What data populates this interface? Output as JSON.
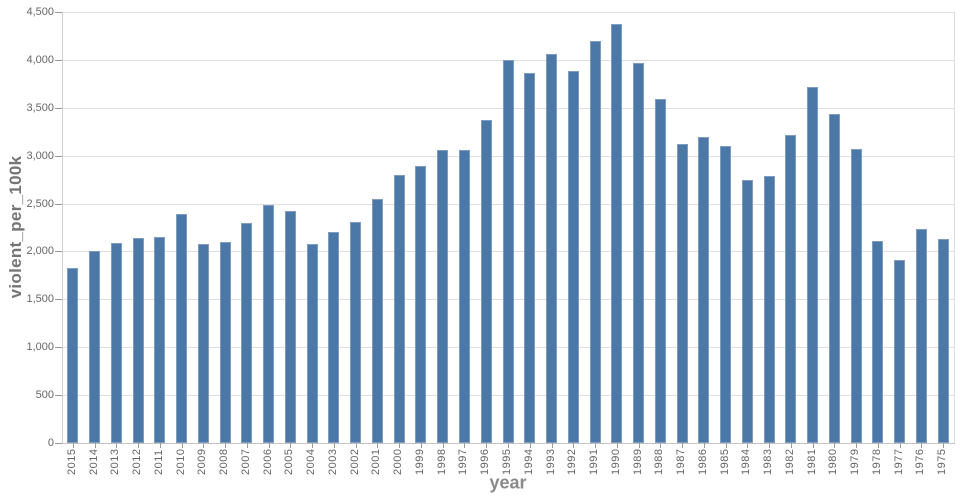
{
  "chart_data": {
    "type": "bar",
    "title": "",
    "xlabel": "year",
    "ylabel": "violent_per_100k",
    "categories": [
      "2015",
      "2014",
      "2013",
      "2012",
      "2011",
      "2010",
      "2009",
      "2008",
      "2007",
      "2006",
      "2005",
      "2004",
      "2003",
      "2002",
      "2001",
      "2000",
      "1999",
      "1998",
      "1997",
      "1996",
      "1995",
      "1994",
      "1993",
      "1992",
      "1991",
      "1990",
      "1989",
      "1988",
      "1987",
      "1986",
      "1985",
      "1984",
      "1983",
      "1982",
      "1981",
      "1980",
      "1979",
      "1978",
      "1977",
      "1976",
      "1975"
    ],
    "values": [
      1830,
      2000,
      2090,
      2140,
      2150,
      2390,
      2080,
      2100,
      2300,
      2490,
      2420,
      2080,
      2200,
      2310,
      2550,
      2800,
      2890,
      3060,
      3060,
      3370,
      4000,
      3860,
      4060,
      3880,
      4200,
      4370,
      3970,
      3590,
      3120,
      3200,
      3100,
      2750,
      2790,
      3220,
      3720,
      3440,
      3070,
      2110,
      1910,
      2230,
      2130
    ],
    "ylim": [
      0,
      4500
    ],
    "yticks": {
      "values": [
        0,
        500,
        1000,
        1500,
        2000,
        2500,
        3000,
        3500,
        4000,
        4500
      ],
      "labels": [
        "0",
        "500",
        "1,000",
        "1,500",
        "2,000",
        "2,500",
        "3,000",
        "3,500",
        "4,000",
        "4,500"
      ]
    },
    "bar_color": "#4c78a8",
    "grid": true,
    "legend_position": "none"
  }
}
